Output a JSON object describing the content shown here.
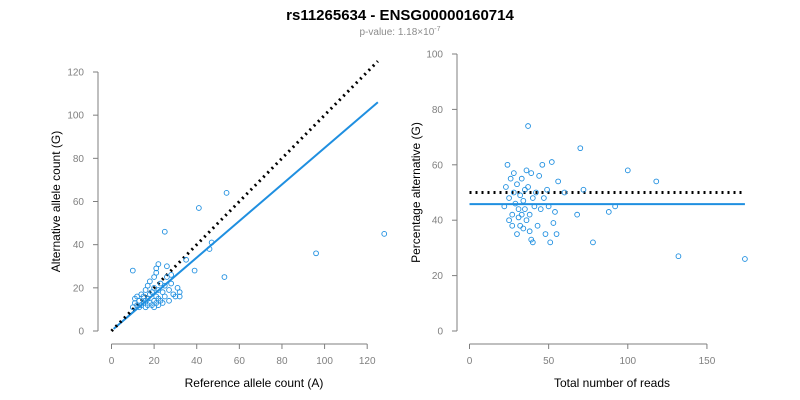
{
  "title": "rs11265634 - ENSG00000160714",
  "subtitle": {
    "prefix": "p-value: 1.18×10",
    "exponent": "-7"
  },
  "colors": {
    "points": "#1f8fe0",
    "fit_line": "#1f8fe0",
    "reference_line": "#000000",
    "axis": "#7f7f7f"
  },
  "chart_data": [
    {
      "type": "scatter",
      "xlabel": "Reference allele count (A)",
      "ylabel": "Alternative allele count (G)",
      "xlim": [
        0,
        130
      ],
      "ylim": [
        0,
        120
      ],
      "xticks": [
        0,
        20,
        40,
        60,
        80,
        100,
        120
      ],
      "yticks": [
        0,
        20,
        40,
        60,
        80,
        100,
        120
      ],
      "points": [
        [
          10,
          28
        ],
        [
          10,
          11
        ],
        [
          11,
          15
        ],
        [
          11,
          13
        ],
        [
          12,
          16
        ],
        [
          12,
          12
        ],
        [
          13,
          14
        ],
        [
          13,
          11
        ],
        [
          14,
          17
        ],
        [
          14,
          12
        ],
        [
          15,
          13
        ],
        [
          15,
          16
        ],
        [
          16,
          19
        ],
        [
          16,
          11
        ],
        [
          16,
          14
        ],
        [
          17,
          21
        ],
        [
          17,
          15
        ],
        [
          17,
          12
        ],
        [
          18,
          23
        ],
        [
          18,
          17
        ],
        [
          18,
          13
        ],
        [
          19,
          18
        ],
        [
          19,
          12
        ],
        [
          20,
          20
        ],
        [
          20,
          14
        ],
        [
          20,
          11
        ],
        [
          20,
          25
        ],
        [
          21,
          27
        ],
        [
          21,
          16
        ],
        [
          21,
          13
        ],
        [
          21,
          29
        ],
        [
          22,
          31
        ],
        [
          22,
          19
        ],
        [
          22,
          15
        ],
        [
          22,
          12
        ],
        [
          23,
          22
        ],
        [
          23,
          14
        ],
        [
          24,
          18
        ],
        [
          24,
          13
        ],
        [
          25,
          46
        ],
        [
          25,
          21
        ],
        [
          25,
          16
        ],
        [
          26,
          25
        ],
        [
          26,
          30
        ],
        [
          27,
          19
        ],
        [
          27,
          14
        ],
        [
          28,
          22
        ],
        [
          28,
          26
        ],
        [
          29,
          17
        ],
        [
          30,
          16
        ],
        [
          31,
          20
        ],
        [
          32,
          18
        ],
        [
          32,
          16
        ],
        [
          35,
          33
        ],
        [
          39,
          28
        ],
        [
          41,
          57
        ],
        [
          46,
          38
        ],
        [
          47,
          41
        ],
        [
          53,
          25
        ],
        [
          54,
          64
        ],
        [
          96,
          36
        ],
        [
          128,
          45
        ]
      ],
      "reference_line": {
        "x": [
          0,
          125
        ],
        "y": [
          0,
          125
        ]
      },
      "fit_line": {
        "x": [
          1,
          125
        ],
        "y": [
          1,
          106
        ]
      }
    },
    {
      "type": "scatter",
      "xlabel": "Total number of reads",
      "ylabel": "Percentage alternative (G)",
      "xlim": [
        0,
        175
      ],
      "ylim": [
        0,
        100
      ],
      "xticks": [
        0,
        50,
        100,
        150
      ],
      "yticks": [
        0,
        20,
        40,
        60,
        80,
        100
      ],
      "points": [
        [
          22,
          45
        ],
        [
          23,
          52
        ],
        [
          24,
          60
        ],
        [
          25,
          48
        ],
        [
          25,
          40
        ],
        [
          26,
          55
        ],
        [
          27,
          42
        ],
        [
          27,
          38
        ],
        [
          28,
          50
        ],
        [
          28,
          57
        ],
        [
          29,
          46
        ],
        [
          30,
          53
        ],
        [
          30,
          35
        ],
        [
          31,
          44
        ],
        [
          31,
          41
        ],
        [
          32,
          49
        ],
        [
          32,
          38
        ],
        [
          33,
          55
        ],
        [
          33,
          42
        ],
        [
          34,
          47
        ],
        [
          34,
          37
        ],
        [
          35,
          51
        ],
        [
          35,
          44
        ],
        [
          36,
          40
        ],
        [
          36,
          58
        ],
        [
          37,
          52
        ],
        [
          37,
          74
        ],
        [
          38,
          36
        ],
        [
          38,
          42
        ],
        [
          39,
          57
        ],
        [
          39,
          33
        ],
        [
          40,
          48
        ],
        [
          40,
          32
        ],
        [
          41,
          45
        ],
        [
          42,
          50
        ],
        [
          43,
          38
        ],
        [
          44,
          56
        ],
        [
          45,
          44
        ],
        [
          46,
          60
        ],
        [
          47,
          48
        ],
        [
          48,
          35
        ],
        [
          49,
          51
        ],
        [
          50,
          45
        ],
        [
          51,
          32
        ],
        [
          52,
          61
        ],
        [
          53,
          39
        ],
        [
          54,
          43
        ],
        [
          55,
          35
        ],
        [
          56,
          54
        ],
        [
          60,
          50
        ],
        [
          68,
          42
        ],
        [
          70,
          66
        ],
        [
          72,
          51
        ],
        [
          78,
          32
        ],
        [
          88,
          43
        ],
        [
          92,
          45
        ],
        [
          100,
          58
        ],
        [
          118,
          54
        ],
        [
          132,
          27
        ],
        [
          174,
          26
        ]
      ],
      "reference_line": {
        "x": [
          0,
          174
        ],
        "y": [
          50,
          50
        ]
      },
      "fit_line": {
        "x": [
          0,
          174
        ],
        "y": [
          45.8,
          45.8
        ]
      }
    }
  ]
}
